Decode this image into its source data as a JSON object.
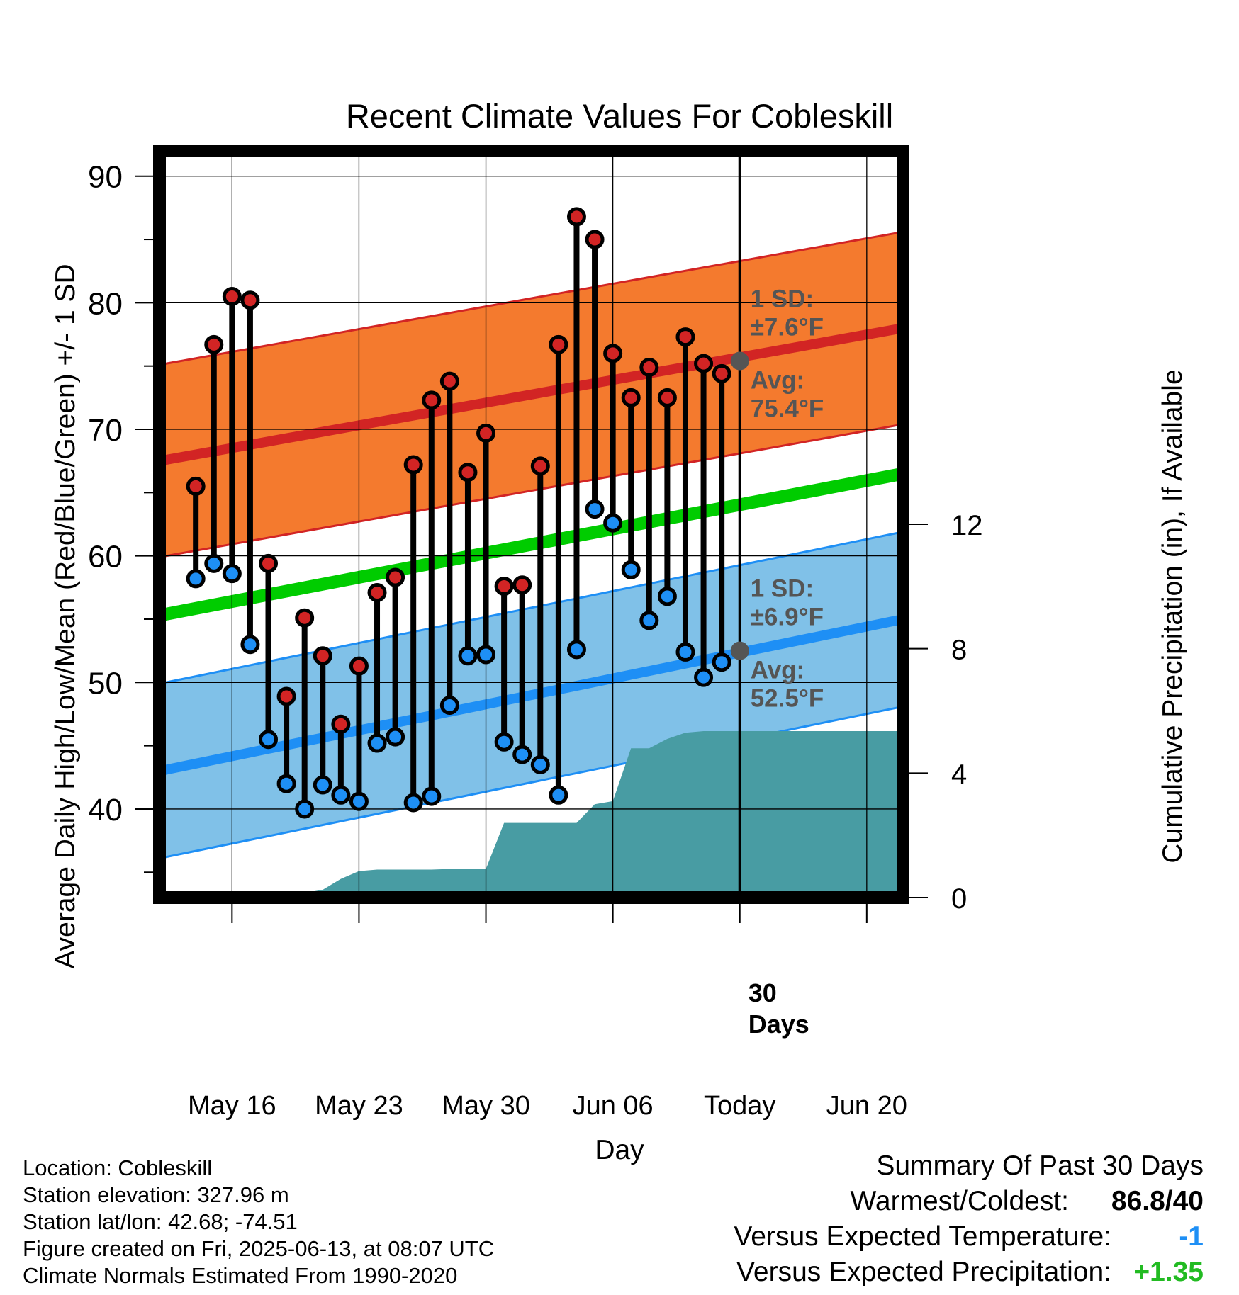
{
  "chart_data": {
    "type": "line",
    "title": "Recent Climate Values For Cobleskill",
    "xlabel": "Day",
    "ylabel": "Average Daily High/Low/Mean (Red/Blue/Green) +/- 1 SD",
    "y2label": "Cumulative Precipitation (in), If Available",
    "ylim": [
      33,
      92
    ],
    "y2lim": [
      0,
      24
    ],
    "xlim": [
      "2025-05-12",
      "2025-06-22"
    ],
    "grid": true,
    "y_ticks": [
      "40",
      "50",
      "60",
      "70",
      "80",
      "90"
    ],
    "y2_ticks": [
      "0",
      "4",
      "8",
      "12"
    ],
    "x_ticks": [
      {
        "date": "2025-05-16",
        "label": "May 16"
      },
      {
        "date": "2025-05-23",
        "label": "May 23"
      },
      {
        "date": "2025-05-30",
        "label": "May 30"
      },
      {
        "date": "2025-06-06",
        "label": "Jun 06"
      },
      {
        "date": "2025-06-13",
        "label": "Today"
      },
      {
        "date": "2025-06-20",
        "label": "Jun 20"
      }
    ],
    "today": "2025-06-13",
    "today_label": "30 Days",
    "observed": {
      "dates": [
        "2025-05-14",
        "2025-05-15",
        "2025-05-16",
        "2025-05-17",
        "2025-05-18",
        "2025-05-19",
        "2025-05-20",
        "2025-05-21",
        "2025-05-22",
        "2025-05-23",
        "2025-05-24",
        "2025-05-25",
        "2025-05-26",
        "2025-05-27",
        "2025-05-28",
        "2025-05-29",
        "2025-05-30",
        "2025-05-31",
        "2025-06-01",
        "2025-06-02",
        "2025-06-03",
        "2025-06-04",
        "2025-06-05",
        "2025-06-06",
        "2025-06-07",
        "2025-06-08",
        "2025-06-09",
        "2025-06-10",
        "2025-06-11",
        "2025-06-12"
      ],
      "highs": [
        65.5,
        76.7,
        80.5,
        80.2,
        59.4,
        48.9,
        55.1,
        52.1,
        46.7,
        51.3,
        57.1,
        58.3,
        67.2,
        72.3,
        73.8,
        66.6,
        69.7,
        57.6,
        57.7,
        67.1,
        76.7,
        86.8,
        85.0,
        76.0,
        72.5,
        74.9,
        72.5,
        77.3,
        75.2,
        74.4
      ],
      "lows": [
        58.2,
        59.4,
        58.6,
        53.0,
        45.5,
        42.0,
        40.0,
        41.9,
        41.1,
        40.6,
        45.2,
        45.7,
        40.5,
        41.0,
        48.2,
        52.1,
        52.2,
        45.3,
        44.3,
        43.5,
        41.1,
        52.6,
        63.7,
        62.6,
        58.9,
        54.9,
        56.8,
        52.4,
        50.4,
        51.6
      ]
    },
    "normals": {
      "x_range": [
        "2025-05-12",
        "2025-06-22"
      ],
      "high_avg": [
        67.5,
        78.0
      ],
      "high_sd": 7.6,
      "low_avg": [
        43.0,
        55.0
      ],
      "low_sd": 6.9,
      "mean_avg": [
        55.3,
        66.5
      ]
    },
    "precip": {
      "dates": [
        "2025-05-16",
        "2025-05-17",
        "2025-05-18",
        "2025-05-19",
        "2025-05-20",
        "2025-05-21",
        "2025-05-22",
        "2025-05-23",
        "2025-05-24",
        "2025-05-25",
        "2025-05-26",
        "2025-05-27",
        "2025-05-28",
        "2025-05-29",
        "2025-05-30",
        "2025-05-31",
        "2025-06-01",
        "2025-06-02",
        "2025-06-03",
        "2025-06-04",
        "2025-06-05",
        "2025-06-06",
        "2025-06-07",
        "2025-06-08",
        "2025-06-09",
        "2025-06-10",
        "2025-06-11",
        "2025-06-12",
        "2025-06-13",
        "2025-06-22"
      ],
      "values": [
        0.05,
        0.15,
        0.15,
        0.15,
        0.15,
        0.25,
        0.6,
        0.85,
        0.9,
        0.9,
        0.9,
        0.9,
        0.92,
        0.92,
        0.92,
        2.4,
        2.4,
        2.4,
        2.4,
        2.4,
        3.0,
        3.1,
        4.8,
        4.8,
        5.1,
        5.3,
        5.35,
        5.35,
        5.35,
        5.35
      ]
    },
    "annotations": {
      "high_sd_text": [
        "1 SD:",
        "±7.6°F"
      ],
      "high_avg_text": [
        "Avg:",
        "75.4°F"
      ],
      "high_avg_value": 75.4,
      "low_sd_text": [
        "1 SD:",
        "±6.9°F"
      ],
      "low_avg_text": [
        "Avg:",
        "52.5°F"
      ],
      "low_avg_value": 52.5
    },
    "colors": {
      "high_band": "#f47a2e",
      "high_line": "#d22424",
      "low_band": "#80c1e8",
      "low_line": "#1e8ff5",
      "mean_line": "#00cc00",
      "precip": "#489ca3",
      "high_dot": "#d22424",
      "low_dot": "#1e8ff5",
      "annotation": "#555555"
    }
  },
  "info": {
    "location": "Location: Cobleskill",
    "elevation": "Station elevation: 327.96 m",
    "latlon": "Station lat/lon: 42.68; -74.51",
    "created": "Figure created on Fri, 2025-06-13, at 08:07 UTC",
    "normals": "Climate Normals Estimated From 1990-2020"
  },
  "summary": {
    "title": "Summary Of Past 30 Days",
    "warm_cold_label": "Warmest/Coldest:",
    "warm_cold_value": "86.8/40",
    "temp_label": "Versus Expected Temperature:",
    "temp_value": "-1",
    "temp_color": "#1e8ff5",
    "precip_label": "Versus Expected Precipitation:",
    "precip_value": "+1.35",
    "precip_color": "#22bb22"
  }
}
